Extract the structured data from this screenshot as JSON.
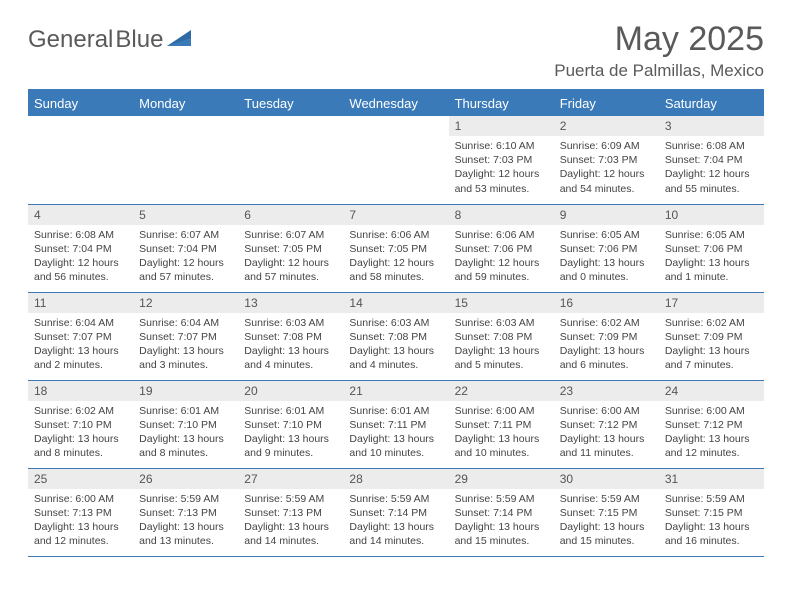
{
  "logo": {
    "text1": "General",
    "text2": "Blue"
  },
  "title": "May 2025",
  "location": "Puerta de Palmillas, Mexico",
  "colors": {
    "accent": "#3a7ab8",
    "header_text": "#ffffff",
    "daynum_bg": "#ececec",
    "text": "#444444",
    "title_text": "#5a5a5a"
  },
  "week_days": [
    "Sunday",
    "Monday",
    "Tuesday",
    "Wednesday",
    "Thursday",
    "Friday",
    "Saturday"
  ],
  "weeks": [
    [
      {
        "empty": true
      },
      {
        "empty": true
      },
      {
        "empty": true
      },
      {
        "empty": true
      },
      {
        "day": "1",
        "sunrise": "Sunrise: 6:10 AM",
        "sunset": "Sunset: 7:03 PM",
        "daylight": "Daylight: 12 hours and 53 minutes."
      },
      {
        "day": "2",
        "sunrise": "Sunrise: 6:09 AM",
        "sunset": "Sunset: 7:03 PM",
        "daylight": "Daylight: 12 hours and 54 minutes."
      },
      {
        "day": "3",
        "sunrise": "Sunrise: 6:08 AM",
        "sunset": "Sunset: 7:04 PM",
        "daylight": "Daylight: 12 hours and 55 minutes."
      }
    ],
    [
      {
        "day": "4",
        "sunrise": "Sunrise: 6:08 AM",
        "sunset": "Sunset: 7:04 PM",
        "daylight": "Daylight: 12 hours and 56 minutes."
      },
      {
        "day": "5",
        "sunrise": "Sunrise: 6:07 AM",
        "sunset": "Sunset: 7:04 PM",
        "daylight": "Daylight: 12 hours and 57 minutes."
      },
      {
        "day": "6",
        "sunrise": "Sunrise: 6:07 AM",
        "sunset": "Sunset: 7:05 PM",
        "daylight": "Daylight: 12 hours and 57 minutes."
      },
      {
        "day": "7",
        "sunrise": "Sunrise: 6:06 AM",
        "sunset": "Sunset: 7:05 PM",
        "daylight": "Daylight: 12 hours and 58 minutes."
      },
      {
        "day": "8",
        "sunrise": "Sunrise: 6:06 AM",
        "sunset": "Sunset: 7:06 PM",
        "daylight": "Daylight: 12 hours and 59 minutes."
      },
      {
        "day": "9",
        "sunrise": "Sunrise: 6:05 AM",
        "sunset": "Sunset: 7:06 PM",
        "daylight": "Daylight: 13 hours and 0 minutes."
      },
      {
        "day": "10",
        "sunrise": "Sunrise: 6:05 AM",
        "sunset": "Sunset: 7:06 PM",
        "daylight": "Daylight: 13 hours and 1 minute."
      }
    ],
    [
      {
        "day": "11",
        "sunrise": "Sunrise: 6:04 AM",
        "sunset": "Sunset: 7:07 PM",
        "daylight": "Daylight: 13 hours and 2 minutes."
      },
      {
        "day": "12",
        "sunrise": "Sunrise: 6:04 AM",
        "sunset": "Sunset: 7:07 PM",
        "daylight": "Daylight: 13 hours and 3 minutes."
      },
      {
        "day": "13",
        "sunrise": "Sunrise: 6:03 AM",
        "sunset": "Sunset: 7:08 PM",
        "daylight": "Daylight: 13 hours and 4 minutes."
      },
      {
        "day": "14",
        "sunrise": "Sunrise: 6:03 AM",
        "sunset": "Sunset: 7:08 PM",
        "daylight": "Daylight: 13 hours and 4 minutes."
      },
      {
        "day": "15",
        "sunrise": "Sunrise: 6:03 AM",
        "sunset": "Sunset: 7:08 PM",
        "daylight": "Daylight: 13 hours and 5 minutes."
      },
      {
        "day": "16",
        "sunrise": "Sunrise: 6:02 AM",
        "sunset": "Sunset: 7:09 PM",
        "daylight": "Daylight: 13 hours and 6 minutes."
      },
      {
        "day": "17",
        "sunrise": "Sunrise: 6:02 AM",
        "sunset": "Sunset: 7:09 PM",
        "daylight": "Daylight: 13 hours and 7 minutes."
      }
    ],
    [
      {
        "day": "18",
        "sunrise": "Sunrise: 6:02 AM",
        "sunset": "Sunset: 7:10 PM",
        "daylight": "Daylight: 13 hours and 8 minutes."
      },
      {
        "day": "19",
        "sunrise": "Sunrise: 6:01 AM",
        "sunset": "Sunset: 7:10 PM",
        "daylight": "Daylight: 13 hours and 8 minutes."
      },
      {
        "day": "20",
        "sunrise": "Sunrise: 6:01 AM",
        "sunset": "Sunset: 7:10 PM",
        "daylight": "Daylight: 13 hours and 9 minutes."
      },
      {
        "day": "21",
        "sunrise": "Sunrise: 6:01 AM",
        "sunset": "Sunset: 7:11 PM",
        "daylight": "Daylight: 13 hours and 10 minutes."
      },
      {
        "day": "22",
        "sunrise": "Sunrise: 6:00 AM",
        "sunset": "Sunset: 7:11 PM",
        "daylight": "Daylight: 13 hours and 10 minutes."
      },
      {
        "day": "23",
        "sunrise": "Sunrise: 6:00 AM",
        "sunset": "Sunset: 7:12 PM",
        "daylight": "Daylight: 13 hours and 11 minutes."
      },
      {
        "day": "24",
        "sunrise": "Sunrise: 6:00 AM",
        "sunset": "Sunset: 7:12 PM",
        "daylight": "Daylight: 13 hours and 12 minutes."
      }
    ],
    [
      {
        "day": "25",
        "sunrise": "Sunrise: 6:00 AM",
        "sunset": "Sunset: 7:13 PM",
        "daylight": "Daylight: 13 hours and 12 minutes."
      },
      {
        "day": "26",
        "sunrise": "Sunrise: 5:59 AM",
        "sunset": "Sunset: 7:13 PM",
        "daylight": "Daylight: 13 hours and 13 minutes."
      },
      {
        "day": "27",
        "sunrise": "Sunrise: 5:59 AM",
        "sunset": "Sunset: 7:13 PM",
        "daylight": "Daylight: 13 hours and 14 minutes."
      },
      {
        "day": "28",
        "sunrise": "Sunrise: 5:59 AM",
        "sunset": "Sunset: 7:14 PM",
        "daylight": "Daylight: 13 hours and 14 minutes."
      },
      {
        "day": "29",
        "sunrise": "Sunrise: 5:59 AM",
        "sunset": "Sunset: 7:14 PM",
        "daylight": "Daylight: 13 hours and 15 minutes."
      },
      {
        "day": "30",
        "sunrise": "Sunrise: 5:59 AM",
        "sunset": "Sunset: 7:15 PM",
        "daylight": "Daylight: 13 hours and 15 minutes."
      },
      {
        "day": "31",
        "sunrise": "Sunrise: 5:59 AM",
        "sunset": "Sunset: 7:15 PM",
        "daylight": "Daylight: 13 hours and 16 minutes."
      }
    ]
  ]
}
